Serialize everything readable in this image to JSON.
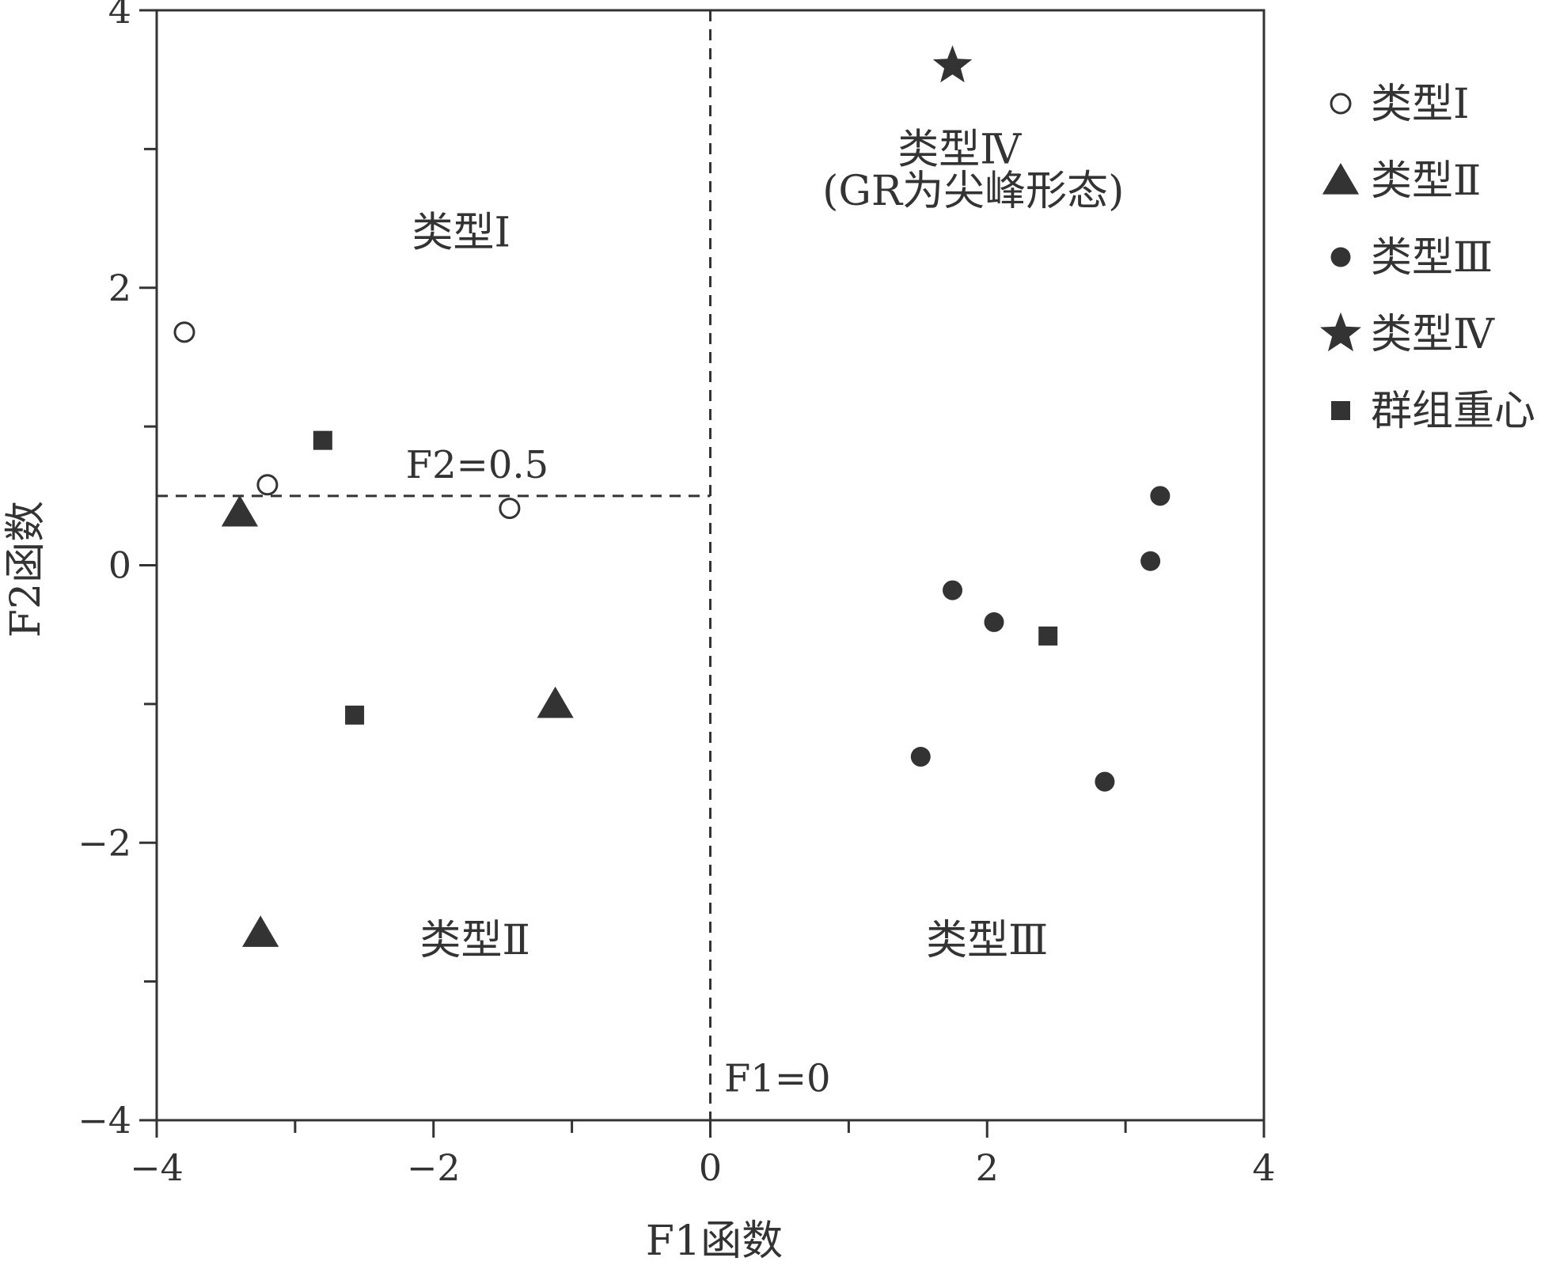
{
  "chart_data": {
    "type": "scatter",
    "title": "",
    "xlabel": "F1函数",
    "ylabel": "F2函数",
    "xlim": [
      -4,
      4
    ],
    "ylim": [
      -4,
      4
    ],
    "x_ticks": [
      -4,
      -3,
      -2,
      -1,
      0,
      1,
      2,
      3,
      4
    ],
    "y_ticks": [
      -4,
      -3,
      -2,
      -1,
      0,
      1,
      2,
      3,
      4
    ],
    "x_tick_labels": [
      {
        "value": -4,
        "label": "−4"
      },
      {
        "value": -2,
        "label": "−2"
      },
      {
        "value": 0,
        "label": "0"
      },
      {
        "value": 2,
        "label": "2"
      },
      {
        "value": 4,
        "label": "4"
      }
    ],
    "y_tick_labels": [
      {
        "value": -4,
        "label": "−4"
      },
      {
        "value": -2,
        "label": "−2"
      },
      {
        "value": 0,
        "label": "0"
      },
      {
        "value": 2,
        "label": "2"
      },
      {
        "value": 4,
        "label": "4"
      }
    ],
    "grid": false,
    "legend_position": "right",
    "reference_lines": [
      {
        "orientation": "vertical",
        "x": 0,
        "y_range": [
          -4,
          4
        ],
        "label": "F1=0",
        "label_at": [
          0.1,
          -3.7
        ]
      },
      {
        "orientation": "horizontal",
        "y": 0.5,
        "x_range": [
          -4,
          0
        ],
        "label": "F2=0.5",
        "label_at": [
          -2.2,
          0.72
        ]
      }
    ],
    "region_labels": [
      {
        "text": "类型Ⅰ",
        "x": -1.8,
        "y": 2.4
      },
      {
        "text": "类型Ⅳ",
        "x": 1.8,
        "y": 3.0
      },
      {
        "text": "(GR为尖峰形态)",
        "x": 1.9,
        "y": 2.7
      },
      {
        "text": "类型Ⅱ",
        "x": -1.7,
        "y": -2.7
      },
      {
        "text": "类型Ⅲ",
        "x": 2.0,
        "y": -2.7
      }
    ],
    "series": [
      {
        "name": "类型Ⅰ",
        "marker": "open-circle",
        "points": [
          [
            -3.8,
            1.68
          ],
          [
            -3.2,
            0.58
          ],
          [
            -1.45,
            0.41
          ]
        ]
      },
      {
        "name": "类型Ⅱ",
        "marker": "triangle",
        "points": [
          [
            -3.4,
            0.38
          ],
          [
            -3.25,
            -2.65
          ],
          [
            -1.12,
            -1.0
          ]
        ]
      },
      {
        "name": "类型Ⅲ",
        "marker": "filled-circle",
        "points": [
          [
            1.75,
            -0.18
          ],
          [
            2.05,
            -0.41
          ],
          [
            3.18,
            0.03
          ],
          [
            3.25,
            0.5
          ],
          [
            1.52,
            -1.38
          ],
          [
            2.85,
            -1.56
          ]
        ]
      },
      {
        "name": "类型Ⅳ",
        "marker": "star",
        "points": [
          [
            1.75,
            3.6
          ]
        ]
      },
      {
        "name": "群组重心",
        "marker": "square",
        "points": [
          [
            -2.8,
            0.9
          ],
          [
            -2.57,
            -1.08
          ],
          [
            2.44,
            -0.51
          ]
        ]
      }
    ],
    "colors": {
      "marker": "#333333",
      "axis": "#333333",
      "background": "#ffffff"
    }
  }
}
